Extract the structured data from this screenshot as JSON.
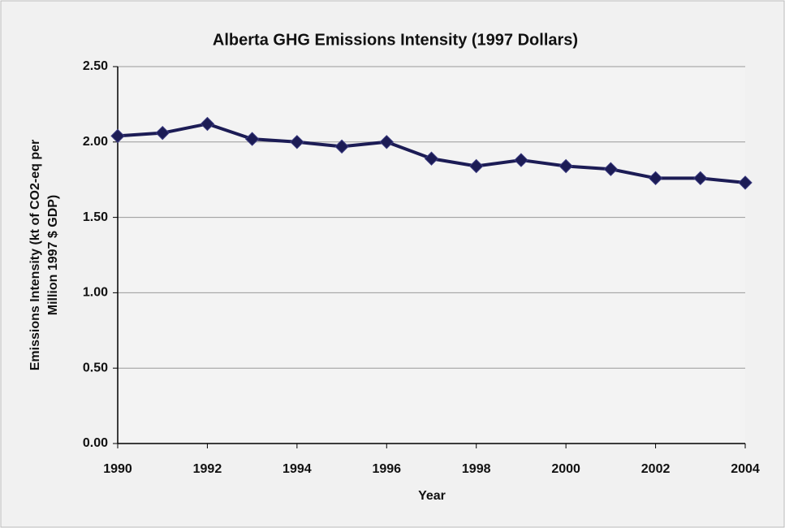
{
  "chart_data": {
    "type": "line",
    "title": "Alberta GHG Emissions Intensity (1997 Dollars)",
    "xlabel": "Year",
    "ylabel": [
      "Emissions Intensity (kt of CO2-eq per",
      "Million 1997 $ GDP)"
    ],
    "x": [
      1990,
      1991,
      1992,
      1993,
      1994,
      1995,
      1996,
      1997,
      1998,
      1999,
      2000,
      2001,
      2002,
      2003,
      2004
    ],
    "series": [
      {
        "color": "#1c1c55",
        "values": [
          2.04,
          2.06,
          2.12,
          2.02,
          2.0,
          1.97,
          2.0,
          1.89,
          1.84,
          1.88,
          1.84,
          1.82,
          1.76,
          1.76,
          1.73
        ]
      }
    ],
    "xlim": [
      1990,
      2004
    ],
    "xticks": [
      1990,
      1992,
      1994,
      1996,
      1998,
      2000,
      2002,
      2004
    ],
    "ylim": [
      0,
      2.5
    ],
    "yticks": [
      {
        "value": 0,
        "label": "0.00"
      },
      {
        "value": 0.5,
        "label": "0.50"
      },
      {
        "value": 1,
        "label": "1.00"
      },
      {
        "value": 1.5,
        "label": "1.50"
      },
      {
        "value": 2,
        "label": "2.00"
      },
      {
        "value": 2.5,
        "label": "2.50"
      }
    ],
    "grid": true
  }
}
